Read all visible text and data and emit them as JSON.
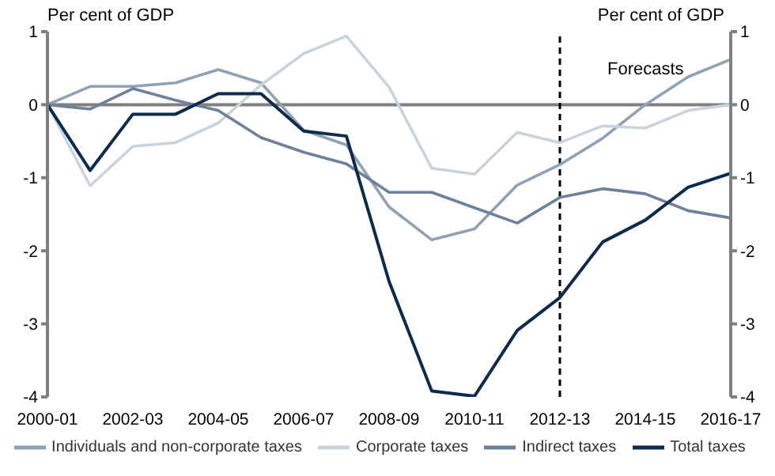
{
  "chart_data": {
    "type": "line",
    "ylabel": "Per cent of GDP",
    "y2label": "Per cent of GDP",
    "categories": [
      "2000-01",
      null,
      "2002-03",
      null,
      "2004-05",
      null,
      "2006-07",
      null,
      "2008-09",
      null,
      "2010-11",
      null,
      "2012-13",
      null,
      "2014-15",
      null,
      "2016-17"
    ],
    "series": [
      {
        "name": "Individuals and non-corporate taxes",
        "color": "#8fa1b4",
        "values": [
          0,
          0.25,
          0.25,
          0.3,
          0.48,
          0.3,
          -0.35,
          -0.55,
          -1.4,
          -1.85,
          -1.7,
          -1.1,
          -0.82,
          -0.46,
          0,
          0.38,
          0.62
        ]
      },
      {
        "name": "Corporate taxes",
        "color": "#c9d3dd",
        "values": [
          0,
          -1.11,
          -0.57,
          -0.52,
          -0.25,
          0.27,
          0.7,
          0.94,
          0.24,
          -0.87,
          -0.95,
          -0.38,
          -0.52,
          -0.29,
          -0.32,
          -0.08,
          0
        ]
      },
      {
        "name": "Indirect taxes",
        "color": "#6d8299",
        "values": [
          0,
          -0.06,
          0.22,
          0.06,
          -0.08,
          -0.45,
          -0.65,
          -0.81,
          -1.2,
          -1.2,
          -1.41,
          -1.62,
          -1.27,
          -1.15,
          -1.22,
          -1.45,
          -1.55
        ]
      },
      {
        "name": "Total taxes",
        "color": "#0d2b4c",
        "values": [
          0,
          -0.9,
          -0.13,
          -0.13,
          0.15,
          0.15,
          -0.36,
          -0.43,
          -2.42,
          -3.92,
          -3.99,
          -3.09,
          -2.64,
          -1.88,
          -1.58,
          -1.13,
          -0.94
        ]
      }
    ],
    "ylim": [
      -4,
      1
    ],
    "yticks": [
      -4,
      -3,
      -2,
      -1,
      0,
      1
    ],
    "y2lim": [
      -4,
      1
    ],
    "y2ticks": [
      -4,
      -3,
      -2,
      -1,
      0,
      1
    ],
    "ref_lines": [
      {
        "axis": "x",
        "value": "2012-13",
        "color": "#000000",
        "line_style": "dashed"
      }
    ],
    "annotations": [
      "Forecasts"
    ],
    "legend": "bottom",
    "marker": "none",
    "line_style": "solid"
  }
}
